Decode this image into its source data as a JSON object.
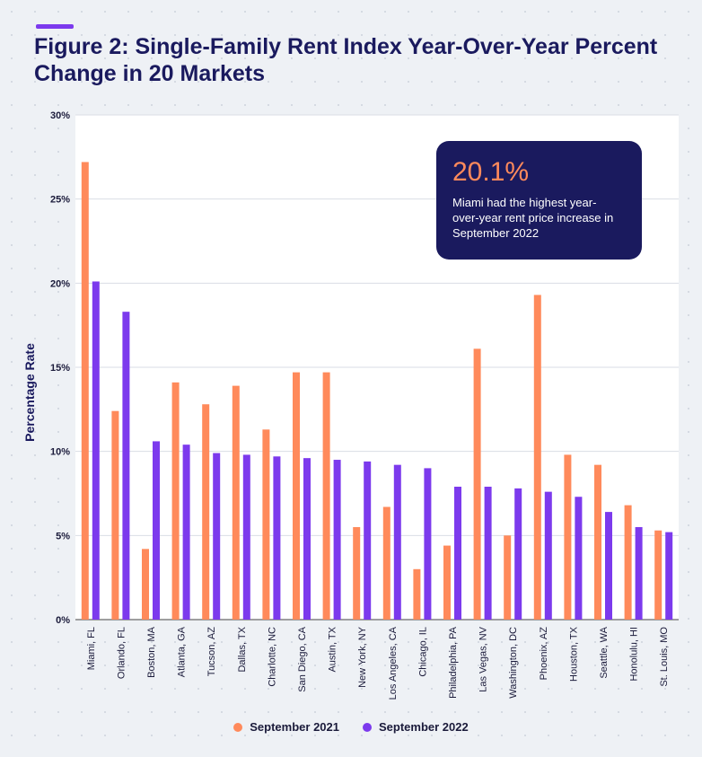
{
  "title": "Figure 2: Single-Family Rent Index Year-Over-Year Percent Change in 20 Markets",
  "callout": {
    "value": "20.1%",
    "text": "Miami had the highest year-over-year rent price increase in September 2022"
  },
  "colors": {
    "series_2021": "#ff8a5b",
    "series_2022": "#7c3aed",
    "title": "#1a1a5e"
  },
  "chart_data": {
    "type": "bar",
    "ylabel": "Percentage Rate",
    "xlabel": "",
    "ylim": [
      0,
      30
    ],
    "yticks": [
      "0%",
      "5%",
      "10%",
      "15%",
      "20%",
      "25%",
      "30%"
    ],
    "grid": true,
    "legend_position": "bottom",
    "categories": [
      "Miami, FL",
      "Orlando, FL",
      "Boston, MA",
      "Atlanta, GA",
      "Tucson, AZ",
      "Dallas, TX",
      "Charlotte, NC",
      "San Diego, CA",
      "Austin, TX",
      "New York, NY",
      "Los Angeles, CA",
      "Chicago, IL",
      "Philadelphia, PA",
      "Las Vegas, NV",
      "Washington, DC",
      "Phoenix, AZ",
      "Houston, TX",
      "Seattle, WA",
      "Honolulu, HI",
      "St. Louis, MO"
    ],
    "series": [
      {
        "name": "September 2021",
        "values": [
          27.2,
          12.4,
          4.2,
          14.1,
          12.8,
          13.9,
          11.3,
          14.7,
          14.7,
          5.5,
          6.7,
          3.0,
          4.4,
          16.1,
          5.0,
          19.3,
          9.8,
          9.2,
          6.8,
          5.3
        ]
      },
      {
        "name": "September 2022",
        "values": [
          20.1,
          18.3,
          10.6,
          10.4,
          9.9,
          9.8,
          9.7,
          9.6,
          9.5,
          9.4,
          9.2,
          9.0,
          7.9,
          7.9,
          7.8,
          7.6,
          7.3,
          6.4,
          5.5,
          5.2
        ]
      }
    ]
  }
}
